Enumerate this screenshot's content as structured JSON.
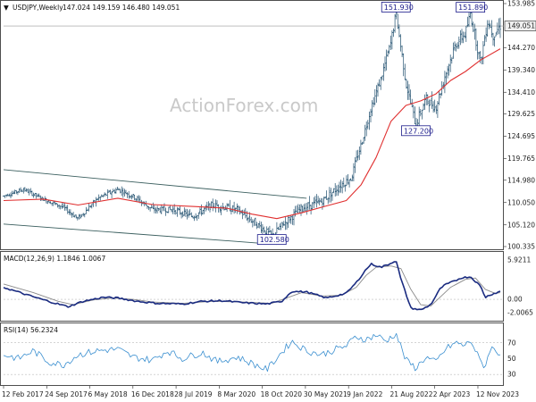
{
  "header": {
    "symbol_label": "USDJPY,Weekly",
    "ohlc": "147.024 149.159 146.480 149.051"
  },
  "watermark": "ActionForex.com",
  "colors": {
    "bars": "#1f4f6e",
    "ma": "#e03030",
    "channel": "#3b5f5f",
    "macd": "#1a2b80",
    "signal": "#8a8a8a",
    "rsi": "#3a8fd0",
    "last_tag_bg": "#f0f0f0",
    "annotation": "#1a1a8a"
  },
  "chart_data": [
    {
      "type": "line",
      "name": "price_panel",
      "title": "USDJPY,Weekly",
      "x": [
        "12 Feb 2017",
        "24 Sep 2017",
        "6 May 2018",
        "16 Dec 2018",
        "28 Jul 2019",
        "8 Mar 2020",
        "18 Oct 2020",
        "30 May 2021",
        "9 Jan 2022",
        "21 Aug 2022",
        "2 Apr 2023",
        "12 Nov 2023"
      ],
      "ylim": [
        100.335,
        153.985
      ],
      "y_ticks": [
        "153.985",
        "149.051",
        "144.270",
        "139.340",
        "134.410",
        "129.625",
        "124.695",
        "119.765",
        "114.980",
        "110.050",
        "105.120",
        "100.335"
      ],
      "last_value": "149.051",
      "anchors": [
        {
          "x": 0.0,
          "y": 111.5
        },
        {
          "x": 0.04,
          "y": 113.0
        },
        {
          "x": 0.08,
          "y": 110.8
        },
        {
          "x": 0.12,
          "y": 109.0
        },
        {
          "x": 0.15,
          "y": 106.5
        },
        {
          "x": 0.19,
          "y": 111.0
        },
        {
          "x": 0.23,
          "y": 113.0
        },
        {
          "x": 0.26,
          "y": 111.5
        },
        {
          "x": 0.3,
          "y": 108.5
        },
        {
          "x": 0.34,
          "y": 108.5
        },
        {
          "x": 0.38,
          "y": 107.0
        },
        {
          "x": 0.42,
          "y": 109.5
        },
        {
          "x": 0.47,
          "y": 108.5
        },
        {
          "x": 0.5,
          "y": 106.0
        },
        {
          "x": 0.52,
          "y": 104.5
        },
        {
          "x": 0.54,
          "y": 102.6
        },
        {
          "x": 0.56,
          "y": 105.0
        },
        {
          "x": 0.6,
          "y": 108.8
        },
        {
          "x": 0.64,
          "y": 110.3
        },
        {
          "x": 0.68,
          "y": 114.0
        },
        {
          "x": 0.7,
          "y": 115.5
        },
        {
          "x": 0.72,
          "y": 123.0
        },
        {
          "x": 0.74,
          "y": 131.0
        },
        {
          "x": 0.76,
          "y": 137.5
        },
        {
          "x": 0.78,
          "y": 145.5
        },
        {
          "x": 0.79,
          "y": 151.9
        },
        {
          "x": 0.81,
          "y": 136.5
        },
        {
          "x": 0.83,
          "y": 127.2
        },
        {
          "x": 0.85,
          "y": 133.0
        },
        {
          "x": 0.87,
          "y": 131.0
        },
        {
          "x": 0.89,
          "y": 138.5
        },
        {
          "x": 0.91,
          "y": 145.0
        },
        {
          "x": 0.93,
          "y": 147.5
        },
        {
          "x": 0.94,
          "y": 151.89
        },
        {
          "x": 0.96,
          "y": 141.0
        },
        {
          "x": 0.975,
          "y": 150.5
        },
        {
          "x": 0.985,
          "y": 147.0
        },
        {
          "x": 1.0,
          "y": 149.05
        }
      ],
      "ma_anchors": [
        {
          "x": 0.0,
          "y": 110.5
        },
        {
          "x": 0.08,
          "y": 110.8
        },
        {
          "x": 0.15,
          "y": 109.5
        },
        {
          "x": 0.23,
          "y": 111.0
        },
        {
          "x": 0.3,
          "y": 109.6
        },
        {
          "x": 0.38,
          "y": 109.2
        },
        {
          "x": 0.45,
          "y": 108.8
        },
        {
          "x": 0.5,
          "y": 107.5
        },
        {
          "x": 0.55,
          "y": 106.5
        },
        {
          "x": 0.6,
          "y": 107.8
        },
        {
          "x": 0.65,
          "y": 109.3
        },
        {
          "x": 0.69,
          "y": 110.5
        },
        {
          "x": 0.72,
          "y": 114.0
        },
        {
          "x": 0.75,
          "y": 120.0
        },
        {
          "x": 0.78,
          "y": 128.0
        },
        {
          "x": 0.81,
          "y": 131.5
        },
        {
          "x": 0.84,
          "y": 132.5
        },
        {
          "x": 0.87,
          "y": 134.0
        },
        {
          "x": 0.9,
          "y": 137.0
        },
        {
          "x": 0.93,
          "y": 139.0
        },
        {
          "x": 0.96,
          "y": 141.5
        },
        {
          "x": 1.0,
          "y": 144.0
        }
      ],
      "channel": {
        "upper": [
          {
            "x": 0.0,
            "y": 117.3
          },
          {
            "x": 0.61,
            "y": 111.0
          }
        ],
        "lower": [
          {
            "x": 0.0,
            "y": 105.3
          },
          {
            "x": 0.55,
            "y": 100.8
          }
        ]
      },
      "annotations": [
        {
          "text": "151.930",
          "x": 0.79,
          "y": 151.93
        },
        {
          "text": "151.890",
          "x": 0.94,
          "y": 151.89
        },
        {
          "text": "127.200",
          "x": 0.83,
          "y": 127.2
        },
        {
          "text": "102.580",
          "x": 0.54,
          "y": 102.58
        }
      ]
    },
    {
      "type": "line",
      "name": "macd_panel",
      "title": "MACD(12,26,9) 1.1846 1.0067",
      "ylim": [
        -2.8,
        6.3
      ],
      "y_ticks": [
        "5.9211",
        "0.00",
        "-2.0065"
      ],
      "macd_anchors": [
        {
          "x": 0.0,
          "y": 1.8
        },
        {
          "x": 0.05,
          "y": 0.6
        },
        {
          "x": 0.1,
          "y": -0.5
        },
        {
          "x": 0.13,
          "y": -1.1
        },
        {
          "x": 0.16,
          "y": -0.3
        },
        {
          "x": 0.2,
          "y": 0.3
        },
        {
          "x": 0.23,
          "y": 0.2
        },
        {
          "x": 0.27,
          "y": -0.3
        },
        {
          "x": 0.31,
          "y": -0.6
        },
        {
          "x": 0.36,
          "y": -0.7
        },
        {
          "x": 0.4,
          "y": -0.3
        },
        {
          "x": 0.44,
          "y": -0.2
        },
        {
          "x": 0.48,
          "y": -0.5
        },
        {
          "x": 0.53,
          "y": -0.7
        },
        {
          "x": 0.56,
          "y": -0.3
        },
        {
          "x": 0.58,
          "y": 1.2
        },
        {
          "x": 0.61,
          "y": 1.1
        },
        {
          "x": 0.65,
          "y": 0.2
        },
        {
          "x": 0.69,
          "y": 0.9
        },
        {
          "x": 0.71,
          "y": 2.5
        },
        {
          "x": 0.73,
          "y": 4.5
        },
        {
          "x": 0.74,
          "y": 5.3
        },
        {
          "x": 0.76,
          "y": 4.8
        },
        {
          "x": 0.78,
          "y": 5.4
        },
        {
          "x": 0.79,
          "y": 5.9
        },
        {
          "x": 0.8,
          "y": 3.0
        },
        {
          "x": 0.82,
          "y": -1.3
        },
        {
          "x": 0.84,
          "y": -1.6
        },
        {
          "x": 0.86,
          "y": -0.8
        },
        {
          "x": 0.88,
          "y": 1.7
        },
        {
          "x": 0.89,
          "y": 2.2
        },
        {
          "x": 0.91,
          "y": 2.8
        },
        {
          "x": 0.92,
          "y": 3.2
        },
        {
          "x": 0.94,
          "y": 3.4
        },
        {
          "x": 0.96,
          "y": 2.0
        },
        {
          "x": 0.97,
          "y": 0.3
        },
        {
          "x": 0.98,
          "y": 0.7
        },
        {
          "x": 1.0,
          "y": 1.18
        }
      ],
      "signal_anchors": [
        {
          "x": 0.0,
          "y": 2.3
        },
        {
          "x": 0.06,
          "y": 1.0
        },
        {
          "x": 0.11,
          "y": -0.3
        },
        {
          "x": 0.14,
          "y": -0.8
        },
        {
          "x": 0.18,
          "y": -0.1
        },
        {
          "x": 0.22,
          "y": 0.2
        },
        {
          "x": 0.26,
          "y": 0.0
        },
        {
          "x": 0.3,
          "y": -0.4
        },
        {
          "x": 0.36,
          "y": -0.6
        },
        {
          "x": 0.42,
          "y": -0.3
        },
        {
          "x": 0.48,
          "y": -0.4
        },
        {
          "x": 0.54,
          "y": -0.6
        },
        {
          "x": 0.57,
          "y": 0.2
        },
        {
          "x": 0.6,
          "y": 1.0
        },
        {
          "x": 0.64,
          "y": 0.5
        },
        {
          "x": 0.68,
          "y": 0.6
        },
        {
          "x": 0.71,
          "y": 1.8
        },
        {
          "x": 0.73,
          "y": 3.6
        },
        {
          "x": 0.75,
          "y": 4.8
        },
        {
          "x": 0.78,
          "y": 5.0
        },
        {
          "x": 0.8,
          "y": 4.6
        },
        {
          "x": 0.82,
          "y": 1.5
        },
        {
          "x": 0.84,
          "y": -0.8
        },
        {
          "x": 0.86,
          "y": -1.0
        },
        {
          "x": 0.88,
          "y": 0.4
        },
        {
          "x": 0.9,
          "y": 1.8
        },
        {
          "x": 0.93,
          "y": 3.0
        },
        {
          "x": 0.95,
          "y": 3.2
        },
        {
          "x": 0.97,
          "y": 1.5
        },
        {
          "x": 0.99,
          "y": 0.9
        },
        {
          "x": 1.0,
          "y": 1.0
        }
      ]
    },
    {
      "type": "line",
      "name": "rsi_panel",
      "title": "RSI(14) 56.2324",
      "ylim": [
        20,
        90
      ],
      "y_ticks": [
        "70",
        "50",
        "30"
      ],
      "anchors": [
        {
          "x": 0.0,
          "y": 55
        },
        {
          "x": 0.03,
          "y": 50
        },
        {
          "x": 0.06,
          "y": 60
        },
        {
          "x": 0.09,
          "y": 46
        },
        {
          "x": 0.12,
          "y": 42
        },
        {
          "x": 0.15,
          "y": 55
        },
        {
          "x": 0.19,
          "y": 60
        },
        {
          "x": 0.23,
          "y": 62
        },
        {
          "x": 0.26,
          "y": 52
        },
        {
          "x": 0.3,
          "y": 48
        },
        {
          "x": 0.33,
          "y": 60
        },
        {
          "x": 0.36,
          "y": 50
        },
        {
          "x": 0.4,
          "y": 58
        },
        {
          "x": 0.43,
          "y": 46
        },
        {
          "x": 0.47,
          "y": 52
        },
        {
          "x": 0.5,
          "y": 44
        },
        {
          "x": 0.53,
          "y": 36
        },
        {
          "x": 0.56,
          "y": 58
        },
        {
          "x": 0.58,
          "y": 72
        },
        {
          "x": 0.61,
          "y": 60
        },
        {
          "x": 0.64,
          "y": 55
        },
        {
          "x": 0.67,
          "y": 62
        },
        {
          "x": 0.69,
          "y": 66
        },
        {
          "x": 0.71,
          "y": 78
        },
        {
          "x": 0.73,
          "y": 74
        },
        {
          "x": 0.75,
          "y": 80
        },
        {
          "x": 0.77,
          "y": 72
        },
        {
          "x": 0.79,
          "y": 82
        },
        {
          "x": 0.81,
          "y": 48
        },
        {
          "x": 0.83,
          "y": 38
        },
        {
          "x": 0.85,
          "y": 52
        },
        {
          "x": 0.87,
          "y": 45
        },
        {
          "x": 0.89,
          "y": 62
        },
        {
          "x": 0.91,
          "y": 70
        },
        {
          "x": 0.93,
          "y": 66
        },
        {
          "x": 0.94,
          "y": 74
        },
        {
          "x": 0.96,
          "y": 46
        },
        {
          "x": 0.97,
          "y": 40
        },
        {
          "x": 0.98,
          "y": 64
        },
        {
          "x": 1.0,
          "y": 56.2
        }
      ]
    }
  ]
}
